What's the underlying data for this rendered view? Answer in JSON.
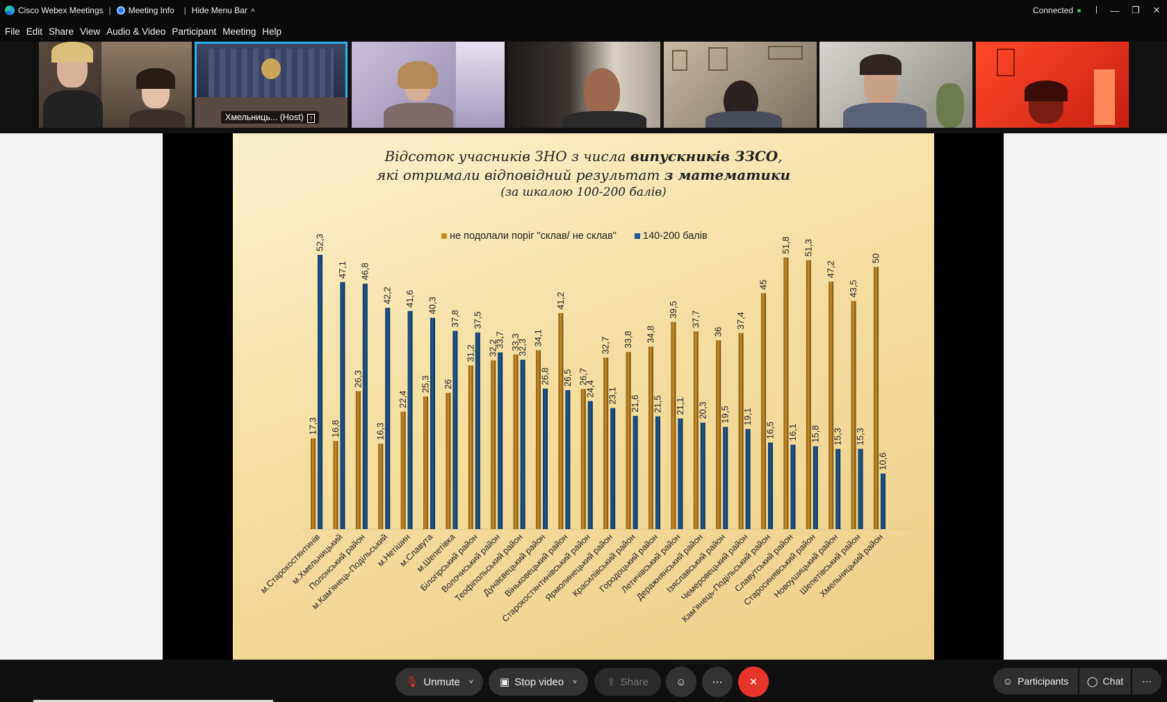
{
  "app": {
    "title": "Cisco Webex Meetings",
    "meeting_info_label": "Meeting Info",
    "hide_menu_label": "Hide Menu Bar",
    "status": "Connected"
  },
  "menu": [
    "File",
    "Edit",
    "Share",
    "View",
    "Audio & Video",
    "Participant",
    "Meeting",
    "Help"
  ],
  "participants": {
    "host_label": "Хмельниць... (Host)"
  },
  "slide": {
    "title_line1_plain": "Відсоток учасників ЗНО з числа ",
    "title_line1_bold": "випускників ЗЗСО",
    "title_line1_end": ",",
    "title_line2_plain": "які отримали відповідний результат ",
    "title_line2_bold": "з математики",
    "title_line3": "(за шкалою 100-200 балів)"
  },
  "colors": {
    "series_fail": "#c8902a",
    "series_high": "#1f5a92",
    "accent_host": "#2ab4e8",
    "end_call": "#e8352a"
  },
  "chart_data": {
    "type": "bar",
    "categories": [
      "м.Старокостянтинів",
      "м.Хмельницький",
      "Полонський район",
      "м.Кам'янець-Подільський",
      "м.Нетішин",
      "м.Славута",
      "м.Шепетівка",
      "Білогірський район",
      "Волочиський район",
      "Теофіпольський район",
      "Дунаєвецький район",
      "Віньковецький район",
      "Старокостянтинівський район",
      "Ярмолинецький район",
      "Красилівський район",
      "Городоцький район",
      "Летичівський район",
      "Деражнянський район",
      "Ізяславський район",
      "Чемеровецький район",
      "Кам'янець-Подільський район",
      "Славутський район",
      "Старосинявський район",
      "Новоушицький район",
      "Шепетівський район",
      "Хмельницький район"
    ],
    "series": [
      {
        "name": "не подолали поріг \"склав/ не склав\"",
        "values": [
          17.3,
          16.8,
          26.3,
          16.3,
          22.4,
          25.3,
          26,
          31.2,
          32.2,
          33.3,
          34.1,
          41.2,
          26.7,
          32.7,
          33.8,
          34.8,
          39.5,
          37.7,
          36,
          37.4,
          45,
          51.8,
          51.3,
          47.2,
          43.5,
          50
        ]
      },
      {
        "name": "140-200 балів",
        "values": [
          52.3,
          47.1,
          46.8,
          42.2,
          41.6,
          40.3,
          37.8,
          37.5,
          33.7,
          32.3,
          26.8,
          26.5,
          24.4,
          23.1,
          21.6,
          21.5,
          21.1,
          20.3,
          19.5,
          19.1,
          16.5,
          16.1,
          15.8,
          15.3,
          15.3,
          10.6
        ]
      }
    ],
    "ylim": [
      0,
      55
    ],
    "grid": false,
    "legend": "top-center",
    "title": "Відсоток учасників ЗНО з числа випускників ЗЗСО, які отримали відповідний результат з математики (за шкалою 100-200 балів)"
  },
  "controls": {
    "unmute": "Unmute",
    "stop_video": "Stop video",
    "share": "Share",
    "participants": "Participants",
    "chat": "Chat"
  }
}
